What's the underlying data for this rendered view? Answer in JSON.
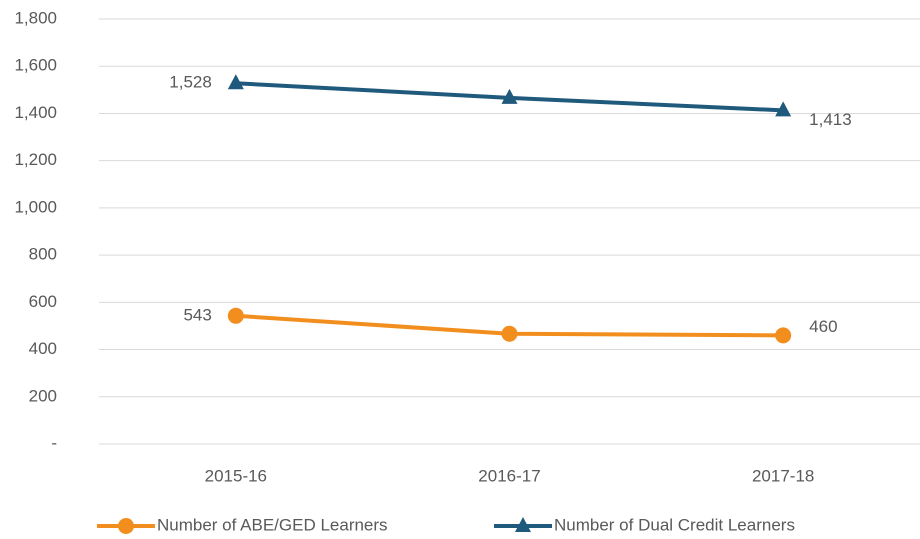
{
  "chart_data": {
    "type": "line",
    "categories": [
      "2015-16",
      "2016-17",
      "2017-18"
    ],
    "series": [
      {
        "name": "Number of ABE/GED Learners",
        "color": "#f28e1e",
        "marker": "circle",
        "values": [
          543,
          467,
          460
        ],
        "value_labels": [
          "543",
          null,
          "460"
        ]
      },
      {
        "name": "Number of Dual Credit Learners",
        "color": "#1f5a7c",
        "marker": "triangle",
        "values": [
          1528,
          1466,
          1413
        ],
        "value_labels": [
          "1,528",
          null,
          "1,413"
        ]
      }
    ],
    "ylim": [
      0,
      1800
    ],
    "yticks": [
      {
        "value": 0,
        "label": "-"
      },
      200,
      400,
      600,
      800,
      {
        "value": 1000,
        "label": "1,000"
      },
      {
        "value": 1200,
        "label": "1,200"
      },
      {
        "value": 1400,
        "label": "1,400"
      },
      {
        "value": 1600,
        "label": "1,600"
      },
      {
        "value": 1800,
        "label": "1,800"
      }
    ],
    "grid": true,
    "legend": "bottom"
  }
}
